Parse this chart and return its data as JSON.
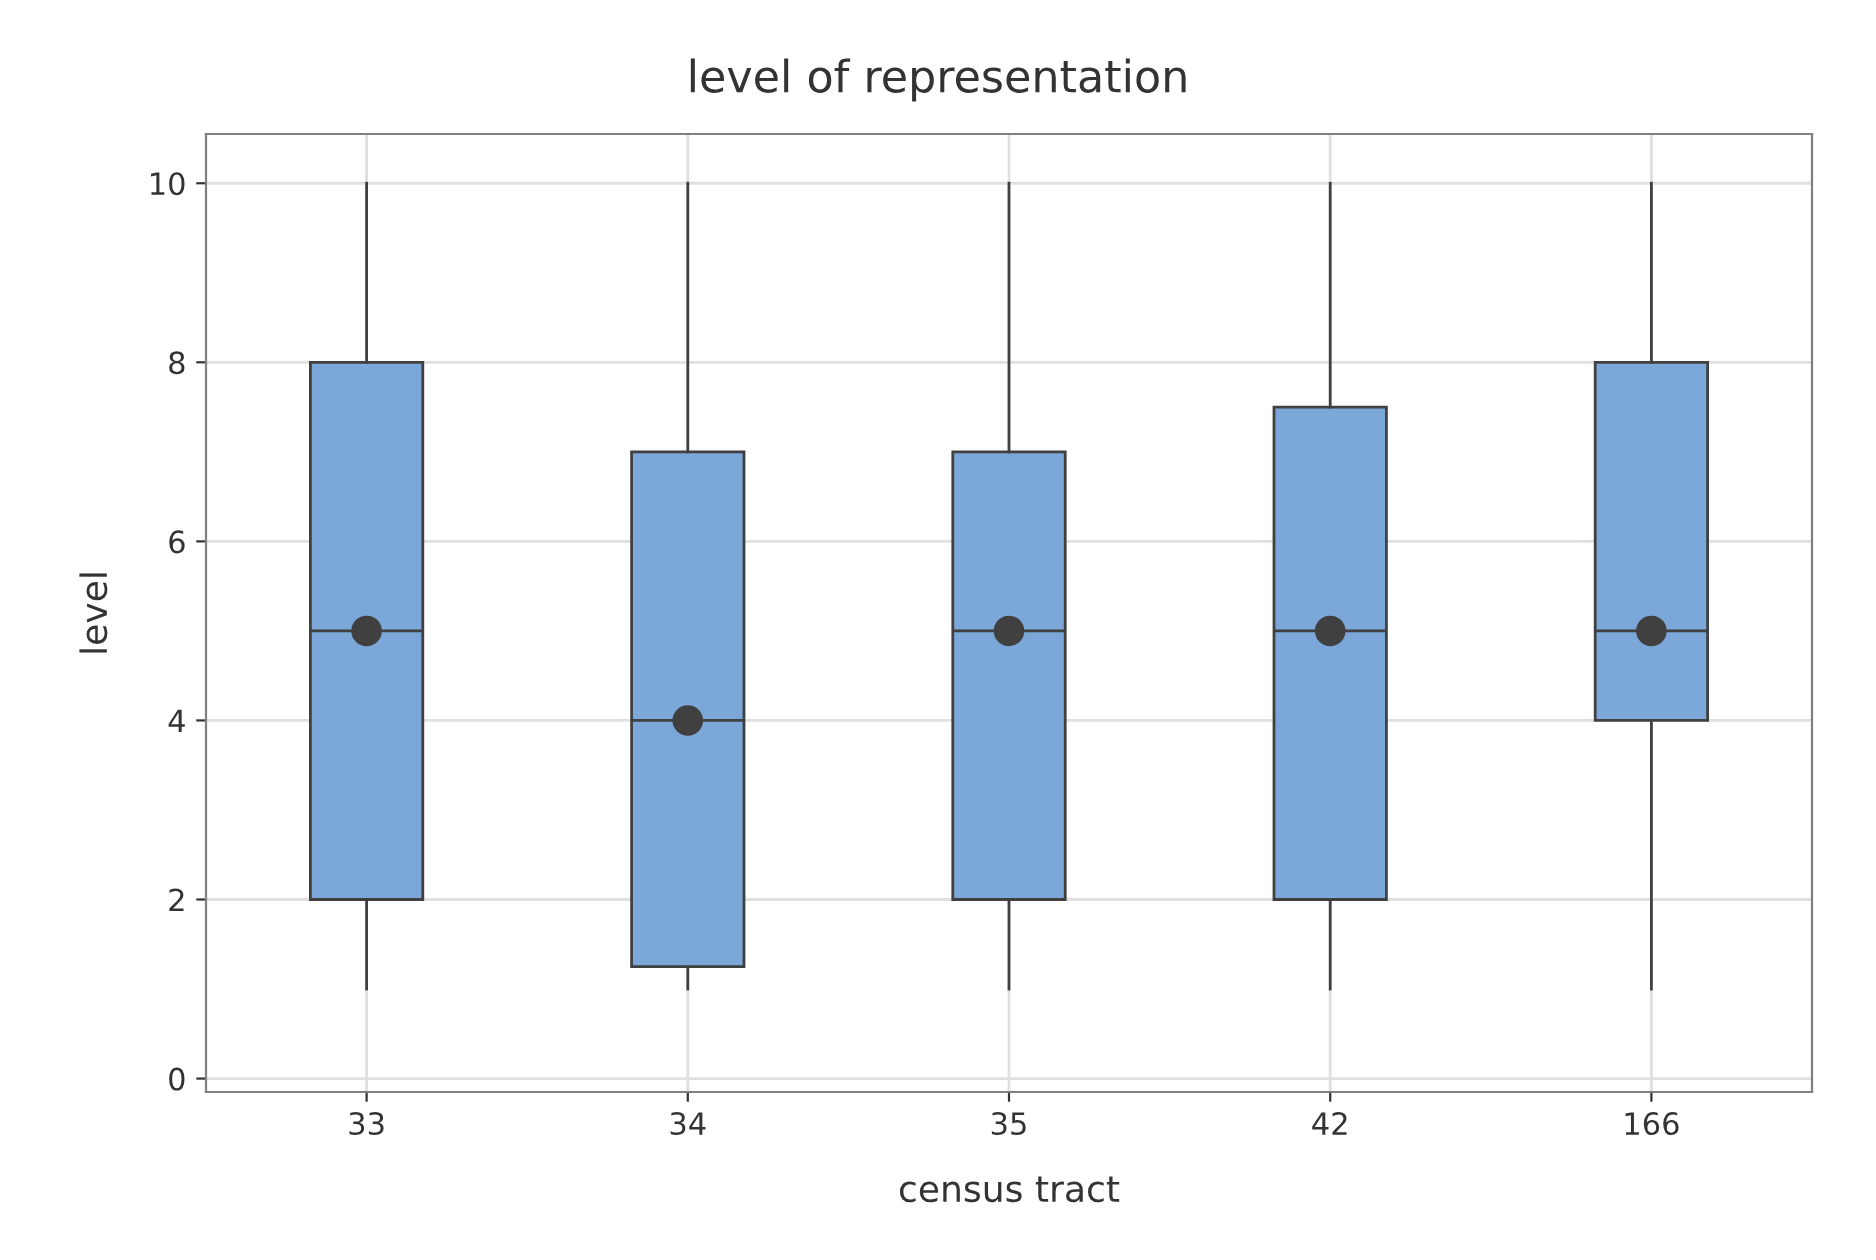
{
  "chart_data": {
    "type": "box",
    "title": "level of representation",
    "xlabel": "census tract",
    "ylabel": "level",
    "categories": [
      "33",
      "34",
      "35",
      "42",
      "166"
    ],
    "boxes": [
      {
        "low": 1,
        "q1": 2,
        "median": 5,
        "q3": 8,
        "high": 10,
        "mean": 5
      },
      {
        "low": 1,
        "q1": 1.25,
        "median": 4,
        "q3": 7,
        "high": 10,
        "mean": 4
      },
      {
        "low": 1,
        "q1": 2,
        "median": 5,
        "q3": 7,
        "high": 10,
        "mean": 5
      },
      {
        "low": 1,
        "q1": 2,
        "median": 5,
        "q3": 7.5,
        "high": 10,
        "mean": 5
      },
      {
        "low": 1,
        "q1": 4,
        "median": 5,
        "q3": 8,
        "high": 10,
        "mean": 5
      }
    ],
    "color": "#7ba7d9",
    "ylim": [
      -0.15,
      10.55
    ],
    "yticks": [
      0,
      2,
      4,
      6,
      8,
      10
    ],
    "grid": true
  }
}
